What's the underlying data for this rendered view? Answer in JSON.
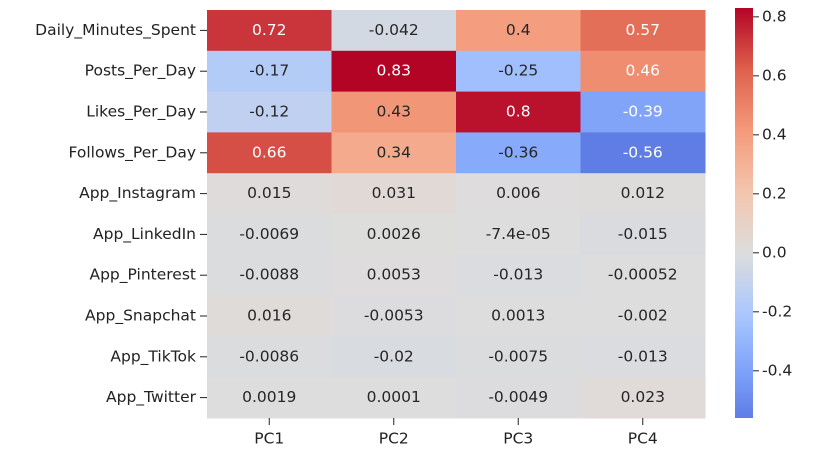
{
  "chart_data": {
    "type": "heatmap",
    "rows": [
      "Daily_Minutes_Spent",
      "Posts_Per_Day",
      "Likes_Per_Day",
      "Follows_Per_Day",
      "App_Instagram",
      "App_LinkedIn",
      "App_Pinterest",
      "App_Snapchat",
      "App_TikTok",
      "App_Twitter"
    ],
    "columns": [
      "PC1",
      "PC2",
      "PC3",
      "PC4"
    ],
    "values": [
      [
        0.72,
        -0.042,
        0.4,
        0.57
      ],
      [
        -0.17,
        0.83,
        -0.25,
        0.46
      ],
      [
        -0.12,
        0.43,
        0.8,
        -0.39
      ],
      [
        0.66,
        0.34,
        -0.36,
        -0.56
      ],
      [
        0.015,
        0.031,
        0.006,
        0.012
      ],
      [
        -0.0069,
        0.0026,
        -7.4e-05,
        -0.015
      ],
      [
        -0.0088,
        0.0053,
        -0.013,
        -0.00052
      ],
      [
        0.016,
        -0.0053,
        0.0013,
        -0.002
      ],
      [
        -0.0086,
        -0.02,
        -0.0075,
        -0.013
      ],
      [
        0.0019,
        0.0001,
        -0.0049,
        0.023
      ]
    ],
    "value_labels": [
      [
        "0.72",
        "-0.042",
        "0.4",
        "0.57"
      ],
      [
        "-0.17",
        "0.83",
        "-0.25",
        "0.46"
      ],
      [
        "-0.12",
        "0.43",
        "0.8",
        "-0.39"
      ],
      [
        "0.66",
        "0.34",
        "-0.36",
        "-0.56"
      ],
      [
        "0.015",
        "0.031",
        "0.006",
        "0.012"
      ],
      [
        "-0.0069",
        "0.0026",
        "-7.4e-05",
        "-0.015"
      ],
      [
        "-0.0088",
        "0.0053",
        "-0.013",
        "-0.00052"
      ],
      [
        "0.016",
        "-0.0053",
        "0.0013",
        "-0.002"
      ],
      [
        "-0.0086",
        "-0.02",
        "-0.0075",
        "-0.013"
      ],
      [
        "0.0019",
        "0.0001",
        "-0.0049",
        "0.023"
      ]
    ],
    "colormap": "coolwarm",
    "center": 0,
    "colorbar_lim": [
      -0.56,
      0.83
    ],
    "colorbar_ticks": [
      0.8,
      0.6,
      0.4,
      0.2,
      {
        "value": 0,
        "label": "0.0"
      },
      -0.2,
      -0.4
    ]
  }
}
